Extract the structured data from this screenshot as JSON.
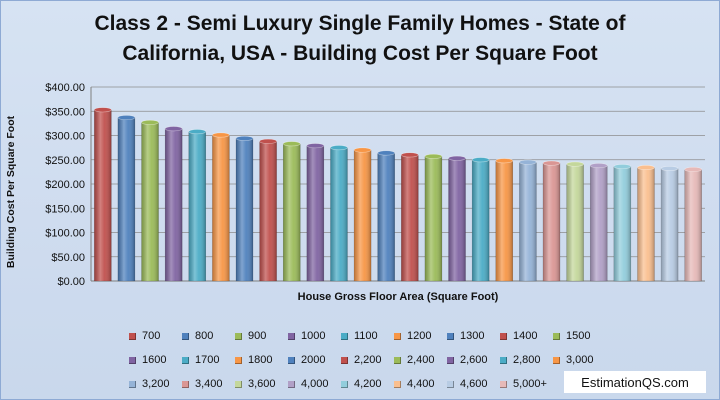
{
  "chart_data": {
    "type": "bar",
    "title_line1": "Class 2 - Semi Luxury Single Family Homes  - State of",
    "title_line2": "California, USA  - Building Cost Per Square Foot",
    "xlabel": "House Gross Floor Area (Square Foot)",
    "ylabel": "Building Cost Per Square Foot",
    "ylim": [
      0,
      400
    ],
    "yticks": [
      "$0.00",
      "$50.00",
      "$100.00",
      "$150.00",
      "$200.00",
      "$250.00",
      "$300.00",
      "$350.00",
      "$400.00"
    ],
    "grid": true,
    "legend_position": "bottom",
    "categories": [
      "700",
      "800",
      "900",
      "1000",
      "1100",
      "1200",
      "1300",
      "1400",
      "1500",
      "1600",
      "1700",
      "1800",
      "2000",
      "2,200",
      "2,400",
      "2,600",
      "2,800",
      "3,000",
      "3,200",
      "3,400",
      "3,600",
      "4,000",
      "4,200",
      "4,400",
      "4,600",
      "5,000+"
    ],
    "values": [
      353,
      337,
      327,
      314,
      308,
      301,
      294,
      288,
      283,
      279,
      275,
      270,
      264,
      260,
      257,
      253,
      250,
      248,
      245,
      243,
      241,
      238,
      236,
      234,
      232,
      230
    ],
    "colors": [
      "#c0504d",
      "#4f81bd",
      "#9bbb59",
      "#8064a2",
      "#4bacc6",
      "#f79646",
      "#4f81bd",
      "#c0504d",
      "#9bbb59",
      "#8064a2",
      "#4bacc6",
      "#f79646",
      "#4f81bd",
      "#c0504d",
      "#9bbb59",
      "#8064a2",
      "#4bacc6",
      "#f79646",
      "#95b3d7",
      "#da9694",
      "#c4d79b",
      "#b1a0c7",
      "#92cddc",
      "#fabf8f",
      "#b8cce4",
      "#e6b9b8"
    ]
  },
  "watermark": "EstimationQS.com"
}
